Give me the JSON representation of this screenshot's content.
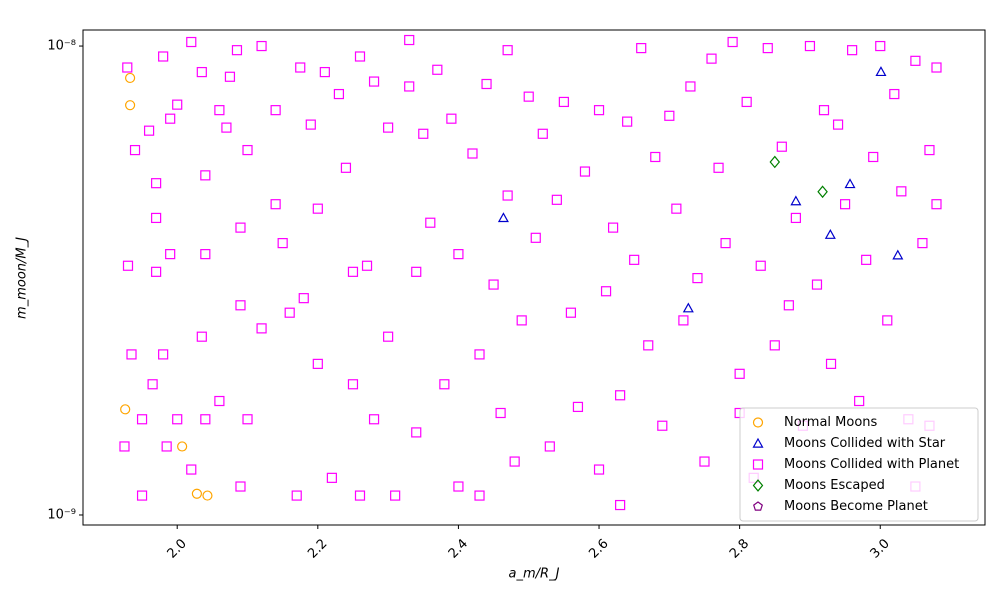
{
  "chart_data": {
    "type": "scatter",
    "x_label": "a_m/R_J",
    "y_label": "m_moon/M_J",
    "xlim": [
      1.866,
      3.149
    ],
    "xticks": [
      {
        "value": 2.0,
        "label": "2.0"
      },
      {
        "value": 2.2,
        "label": "2.2"
      },
      {
        "value": 2.4,
        "label": "2.4"
      },
      {
        "value": 2.6,
        "label": "2.6"
      },
      {
        "value": 2.8,
        "label": "2.8"
      },
      {
        "value": 3.0,
        "label": "3.0"
      }
    ],
    "ylim": [
      9.52e-10,
      1.082e-08
    ],
    "yticks": [
      {
        "value": 1e-09,
        "label": "10⁻⁹"
      },
      {
        "value": 1e-08,
        "label": "10⁻⁸"
      }
    ],
    "y_log": true,
    "legend": "lower right",
    "series": [
      {
        "name": "Normal Moons",
        "color": "orange",
        "marker": "circle",
        "x": [
          1.933,
          1.933,
          1.926,
          2.007,
          2.028,
          2.043
        ],
        "values": [
          8.55e-09,
          7.48e-09,
          1.68e-09,
          1.4e-09,
          1.11e-09,
          1.1e-09
        ]
      },
      {
        "name": "Moons Collided with Star",
        "color": "#0000cc",
        "marker": "triangle",
        "x": [
          2.464,
          2.727,
          2.88,
          2.929,
          2.957,
          3.001,
          3.025
        ],
        "values": [
          4.3e-09,
          2.76e-09,
          4.67e-09,
          3.96e-09,
          5.08e-09,
          8.81e-09,
          3.58e-09
        ]
      },
      {
        "name": "Moons Collided with Planet",
        "color": "magenta",
        "marker": "square",
        "x": [
          1.929,
          1.94,
          1.93,
          1.935,
          1.925,
          1.95,
          1.95,
          1.96,
          1.97,
          1.97,
          1.97,
          1.965,
          1.98,
          1.99,
          1.99,
          1.98,
          1.985,
          2.0,
          2.0,
          2.02,
          2.02,
          2.035,
          2.04,
          2.04,
          2.035,
          2.04,
          2.06,
          2.06,
          2.07,
          2.075,
          2.085,
          2.09,
          2.09,
          2.09,
          2.1,
          2.1,
          2.12,
          2.12,
          2.14,
          2.14,
          2.15,
          2.16,
          2.17,
          2.175,
          2.18,
          2.19,
          2.2,
          2.2,
          2.21,
          2.22,
          2.23,
          2.24,
          2.25,
          2.25,
          2.26,
          2.27,
          2.28,
          2.28,
          2.3,
          2.3,
          2.31,
          2.33,
          2.33,
          2.34,
          2.34,
          2.35,
          2.36,
          2.37,
          2.38,
          2.39,
          2.4,
          2.4,
          2.42,
          2.43,
          2.44,
          2.45,
          2.46,
          2.47,
          2.47,
          2.48,
          2.49,
          2.5,
          2.51,
          2.52,
          2.53,
          2.54,
          2.55,
          2.56,
          2.57,
          2.58,
          2.6,
          2.6,
          2.61,
          2.62,
          2.63,
          2.64,
          2.65,
          2.66,
          2.67,
          2.68,
          2.69,
          2.7,
          2.71,
          2.72,
          2.73,
          2.74,
          2.75,
          2.76,
          2.77,
          2.78,
          2.79,
          2.8,
          2.81,
          2.82,
          2.83,
          2.84,
          2.85,
          2.86,
          2.87,
          2.88,
          2.89,
          2.9,
          2.91,
          2.92,
          2.93,
          2.94,
          2.95,
          2.96,
          2.97,
          2.98,
          2.99,
          3.0,
          3.01,
          3.02,
          3.03,
          3.04,
          3.05,
          3.06,
          3.07,
          3.08,
          3.08,
          3.07,
          3.05,
          2.8,
          2.63,
          2.43,
          2.26
        ],
        "values": [
          9e-09,
          6e-09,
          3.4e-09,
          2.2e-09,
          1.4e-09,
          1.6e-09,
          1.1e-09,
          6.6e-09,
          5.1e-09,
          4.3e-09,
          3.3e-09,
          1.9e-09,
          9.5e-09,
          7e-09,
          3.6e-09,
          2.2e-09,
          1.4e-09,
          7.5e-09,
          1.6e-09,
          1.02e-08,
          1.25e-09,
          8.8e-09,
          5.3e-09,
          3.6e-09,
          2.4e-09,
          1.6e-09,
          7.3e-09,
          1.75e-09,
          6.7e-09,
          8.6e-09,
          9.8e-09,
          4.1e-09,
          2.8e-09,
          1.15e-09,
          6e-09,
          1.6e-09,
          1e-08,
          2.5e-09,
          7.3e-09,
          4.6e-09,
          3.8e-09,
          2.7e-09,
          1.1e-09,
          9e-09,
          2.9e-09,
          6.8e-09,
          4.5e-09,
          2.1e-09,
          8.8e-09,
          1.2e-09,
          7.9e-09,
          5.5e-09,
          3.3e-09,
          1.9e-09,
          9.5e-09,
          3.4e-09,
          8.4e-09,
          1.6e-09,
          6.7e-09,
          2.4e-09,
          1.1e-09,
          1.03e-08,
          8.2e-09,
          3.3e-09,
          1.5e-09,
          6.5e-09,
          4.2e-09,
          8.9e-09,
          1.9e-09,
          7e-09,
          3.6e-09,
          1.15e-09,
          5.9e-09,
          2.2e-09,
          8.3e-09,
          3.1e-09,
          1.65e-09,
          9.8e-09,
          4.8e-09,
          1.3e-09,
          2.6e-09,
          7.8e-09,
          3.9e-09,
          6.5e-09,
          1.4e-09,
          4.7e-09,
          7.6e-09,
          2.7e-09,
          1.7e-09,
          5.4e-09,
          7.3e-09,
          1.25e-09,
          3e-09,
          4.1e-09,
          1.8e-09,
          6.9e-09,
          3.5e-09,
          9.9e-09,
          2.3e-09,
          5.8e-09,
          1.55e-09,
          7.1e-09,
          4.5e-09,
          2.6e-09,
          8.2e-09,
          3.2e-09,
          1.3e-09,
          9.4e-09,
          5.5e-09,
          3.8e-09,
          1.02e-08,
          2e-09,
          7.6e-09,
          1.2e-09,
          3.4e-09,
          9.9e-09,
          2.3e-09,
          6.1e-09,
          2.8e-09,
          4.3e-09,
          1.55e-09,
          1e-08,
          3.1e-09,
          7.3e-09,
          2.1e-09,
          6.8e-09,
          4.6e-09,
          9.8e-09,
          1.75e-09,
          3.5e-09,
          5.8e-09,
          1e-08,
          2.6e-09,
          7.9e-09,
          4.9e-09,
          1.6e-09,
          9.3e-09,
          3.8e-09,
          6e-09,
          9e-09,
          4.6e-09,
          1.55e-09,
          1.15e-09,
          1.65e-09,
          1.05e-09,
          1.1e-09,
          1.1e-09
        ]
      },
      {
        "name": "Moons Escaped",
        "color": "green",
        "marker": "diamond",
        "x": [
          2.85,
          2.918
        ],
        "values": [
          5.66e-09,
          4.89e-09
        ]
      },
      {
        "name": "Moons Become Planet",
        "color": "purple",
        "marker": "pentagon",
        "x": [],
        "values": []
      }
    ]
  }
}
